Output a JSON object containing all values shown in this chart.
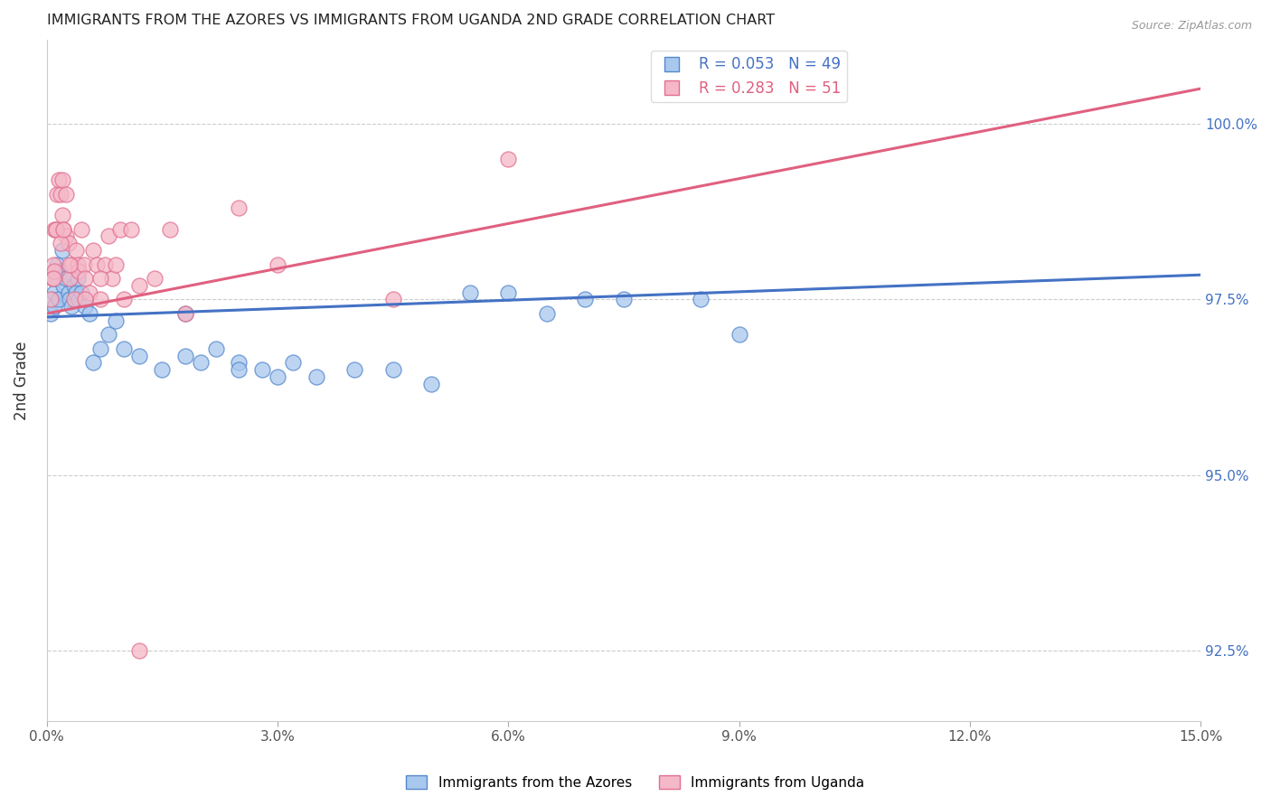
{
  "title": "IMMIGRANTS FROM THE AZORES VS IMMIGRANTS FROM UGANDA 2ND GRADE CORRELATION CHART",
  "source": "Source: ZipAtlas.com",
  "ylabel": "2nd Grade",
  "xlim": [
    0.0,
    15.0
  ],
  "ylim": [
    91.5,
    101.2
  ],
  "yticks": [
    92.5,
    95.0,
    97.5,
    100.0
  ],
  "xticks": [
    0.0,
    3.0,
    6.0,
    9.0,
    12.0,
    15.0
  ],
  "blue_color": "#A8C8EE",
  "blue_edge_color": "#5588CC",
  "pink_color": "#F5B8C8",
  "pink_edge_color": "#E07090",
  "blue_line_color": "#4472C4",
  "pink_line_color": "#E06080",
  "blue_R": 0.053,
  "blue_N": 49,
  "pink_R": 0.283,
  "pink_N": 51,
  "legend_label_blue": "Immigrants from the Azores",
  "legend_label_pink": "Immigrants from Uganda",
  "blue_line_x0": 0.0,
  "blue_line_y0": 97.25,
  "blue_line_x1": 15.0,
  "blue_line_y1": 97.85,
  "pink_line_x0": 0.0,
  "pink_line_y0": 97.3,
  "pink_line_x1": 15.0,
  "pink_line_y1": 100.5,
  "blue_x": [
    0.05,
    0.07,
    0.08,
    0.1,
    0.1,
    0.12,
    0.13,
    0.15,
    0.18,
    0.2,
    0.22,
    0.25,
    0.28,
    0.3,
    0.32,
    0.35,
    0.38,
    0.4,
    0.42,
    0.45,
    0.5,
    0.55,
    0.6,
    0.7,
    0.8,
    0.9,
    1.0,
    1.2,
    1.5,
    1.8,
    2.0,
    2.2,
    2.5,
    2.8,
    3.0,
    3.5,
    4.0,
    5.0,
    6.0,
    7.5,
    8.5,
    1.8,
    2.5,
    3.2,
    4.5,
    5.5,
    6.5,
    7.0,
    9.0
  ],
  "blue_y": [
    97.3,
    97.5,
    97.8,
    97.4,
    97.6,
    97.8,
    98.0,
    97.5,
    97.9,
    98.2,
    97.7,
    97.8,
    97.6,
    97.5,
    97.4,
    97.7,
    97.6,
    97.8,
    97.5,
    97.6,
    97.4,
    97.3,
    96.6,
    96.8,
    97.0,
    97.2,
    96.8,
    96.7,
    96.5,
    96.7,
    96.6,
    96.8,
    96.6,
    96.5,
    96.4,
    96.4,
    96.5,
    96.3,
    97.6,
    97.5,
    97.5,
    97.3,
    96.5,
    96.6,
    96.5,
    97.6,
    97.3,
    97.5,
    97.0
  ],
  "pink_x": [
    0.05,
    0.07,
    0.08,
    0.1,
    0.1,
    0.12,
    0.13,
    0.15,
    0.18,
    0.2,
    0.2,
    0.22,
    0.25,
    0.25,
    0.28,
    0.3,
    0.32,
    0.35,
    0.38,
    0.4,
    0.42,
    0.45,
    0.48,
    0.5,
    0.55,
    0.6,
    0.65,
    0.7,
    0.75,
    0.8,
    0.85,
    0.9,
    0.95,
    1.0,
    1.1,
    1.2,
    1.4,
    1.6,
    1.8,
    2.5,
    3.0,
    4.5,
    6.0,
    0.08,
    0.12,
    0.18,
    0.22,
    0.3,
    0.5,
    0.7,
    1.2
  ],
  "pink_y": [
    97.5,
    97.8,
    98.0,
    97.9,
    98.5,
    98.5,
    99.0,
    99.2,
    99.0,
    98.7,
    99.2,
    98.5,
    98.4,
    99.0,
    98.3,
    97.8,
    98.0,
    97.5,
    98.2,
    98.0,
    97.9,
    98.5,
    98.0,
    97.8,
    97.6,
    98.2,
    98.0,
    97.5,
    98.0,
    98.4,
    97.8,
    98.0,
    98.5,
    97.5,
    98.5,
    97.7,
    97.8,
    98.5,
    97.3,
    98.8,
    98.0,
    97.5,
    99.5,
    97.8,
    98.5,
    98.3,
    98.5,
    98.0,
    97.5,
    97.8,
    92.5
  ]
}
